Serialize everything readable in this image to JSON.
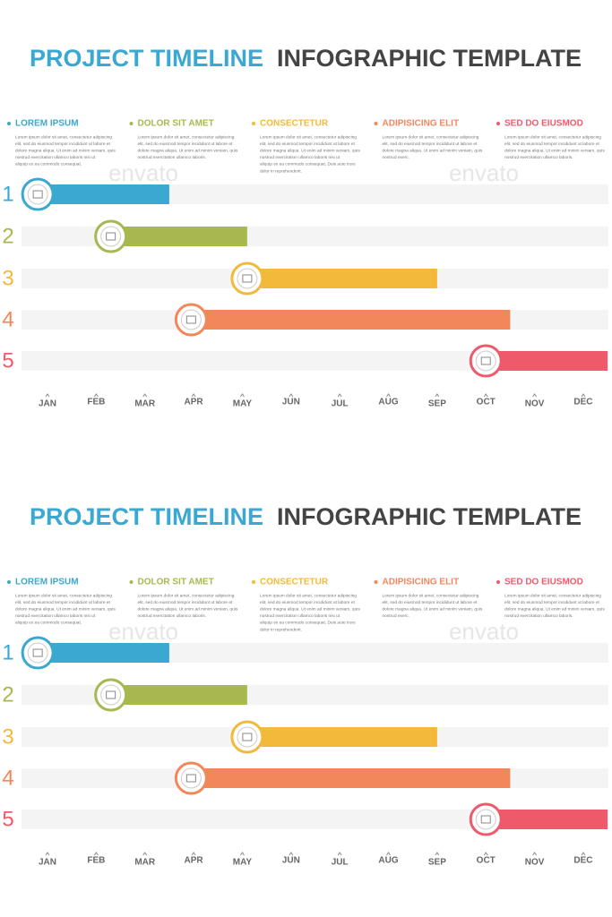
{
  "panels": [
    {
      "title_colored": "PROJECT TIMELINE",
      "title_dark": "INFOGRAPHIC TEMPLATE",
      "watermark": "envato",
      "legend": [
        {
          "label": "LOREM IPSUM",
          "color": "#3aa8d0",
          "text": [
            "Lorem ipsum dolor sit amet, consectetur adipiscing",
            "elit, sed do eiusmod tempor incididunt ut labore et",
            "dolore magna aliqua. Ut enim ad minim veniam, quis",
            "nostrud exercitation ullamco laboris nisi ut",
            "aliquip ex ea commodo consequat."
          ]
        },
        {
          "label": "DOLOR SIT AMET",
          "color": "#a9b84e",
          "text": [
            "Lorem ipsum dolor sit amet, consectetur adipiscing",
            "elit, sed do eiusmod tempor incididunt ut labore et",
            "dolore magna aliqua. Ut enim ad minim veniam, quis",
            "nostrud exercitation ullamco laboris."
          ]
        },
        {
          "label": "CONSECTETUR",
          "color": "#f2b93b",
          "text": [
            "Lorem ipsum dolor sit amet, consectetur adipiscing",
            "elit, sed do eiusmod tempor incididunt ut labore et",
            "dolore magna aliqua. Ut enim ad minim veniam, quis",
            "nostrud exercitation ullamco laboris nisi ut",
            "aliquip ex ea commodo consequat. Duis aute irure",
            "dolor in reprehenderit."
          ]
        },
        {
          "label": "ADIPISICING ELIT",
          "color": "#f2875a",
          "text": [
            "Lorem ipsum dolor sit amet, consectetur adipiscing",
            "elit, sed do eiusmod tempor incididunt ut labore et",
            "dolore magna aliqua. Ut enim ad minim veniam, quis",
            "nostrud exerc."
          ]
        },
        {
          "label": "SED DO EIUSMOD",
          "color": "#ef5a6b",
          "text": [
            "Lorem ipsum dolor sit amet, consectetur adipiscing",
            "elit, sed do eiusmod tempor incididunt ut labore et",
            "dolore magna aliqua. Ut enim ad minim veniam, quis",
            "nostrud exercitation ullamco laboris."
          ]
        }
      ],
      "rows": [
        {
          "number": "1",
          "color": "#3aa8d0",
          "start": -0.2,
          "end": 2.5
        },
        {
          "number": "2",
          "color": "#a9b84e",
          "start": 1.3,
          "end": 4.1
        },
        {
          "number": "3",
          "color": "#f2b93b",
          "start": 4.1,
          "end": 8.0
        },
        {
          "number": "4",
          "color": "#f2875a",
          "start": 2.95,
          "end": 9.5
        },
        {
          "number": "5",
          "color": "#ef5a6b",
          "start": 9.0,
          "end": 11.5
        }
      ],
      "months": [
        "JAN",
        "FEB",
        "MAR",
        "APR",
        "MAY",
        "JUN",
        "JUL",
        "AUG",
        "SEP",
        "OCT",
        "NOV",
        "DEC"
      ]
    },
    {
      "title_colored": "PROJECT TIMELINE",
      "title_dark": "INFOGRAPHIC TEMPLATE",
      "watermark": "envato",
      "legend": [
        {
          "label": "LOREM IPSUM",
          "color": "#3aa8d0",
          "text": [
            "Lorem ipsum dolor sit amet, consectetur adipiscing",
            "elit, sed do eiusmod tempor incididunt ut labore et",
            "dolore magna aliqua. Ut enim ad minim veniam, quis",
            "nostrud exercitation ullamco laboris nisi ut",
            "aliquip ex ea commodo consequat."
          ]
        },
        {
          "label": "DOLOR SIT AMET",
          "color": "#a9b84e",
          "text": [
            "Lorem ipsum dolor sit amet, consectetur adipiscing",
            "elit, sed do eiusmod tempor incididunt ut labore et",
            "dolore magna aliqua. Ut enim ad minim veniam, quis",
            "nostrud exercitation ullamco laboris."
          ]
        },
        {
          "label": "CONSECTETUR",
          "color": "#f2b93b",
          "text": [
            "Lorem ipsum dolor sit amet, consectetur adipiscing",
            "elit, sed do eiusmod tempor incididunt ut labore et",
            "dolore magna aliqua. Ut enim ad minim veniam, quis",
            "nostrud exercitation ullamco laboris nisi ut",
            "aliquip ex ea commodo consequat. Duis aute irure",
            "dolor in reprehenderit."
          ]
        },
        {
          "label": "ADIPISICING ELIT",
          "color": "#f2875a",
          "text": [
            "Lorem ipsum dolor sit amet, consectetur adipiscing",
            "elit, sed do eiusmod tempor incididunt ut labore et",
            "dolore magna aliqua. Ut enim ad minim veniam, quis",
            "nostrud exerc."
          ]
        },
        {
          "label": "SED DO EIUSMOD",
          "color": "#ef5a6b",
          "text": [
            "Lorem ipsum dolor sit amet, consectetur adipiscing",
            "elit, sed do eiusmod tempor incididunt ut labore et",
            "dolore magna aliqua. Ut enim ad minim veniam, quis",
            "nostrud exercitation ullamco laboris."
          ]
        }
      ],
      "rows": [
        {
          "number": "1",
          "color": "#3aa8d0",
          "start": -0.2,
          "end": 2.5
        },
        {
          "number": "2",
          "color": "#a9b84e",
          "start": 1.3,
          "end": 4.1
        },
        {
          "number": "3",
          "color": "#f2b93b",
          "start": 4.1,
          "end": 8.0
        },
        {
          "number": "4",
          "color": "#f2875a",
          "start": 2.95,
          "end": 9.5
        },
        {
          "number": "5",
          "color": "#ef5a6b",
          "start": 9.0,
          "end": 11.5
        }
      ],
      "months": [
        "JAN",
        "FEB",
        "MAR",
        "APR",
        "MAY",
        "JUN",
        "JUL",
        "AUG",
        "SEP",
        "OCT",
        "NOV",
        "DEC"
      ]
    }
  ]
}
